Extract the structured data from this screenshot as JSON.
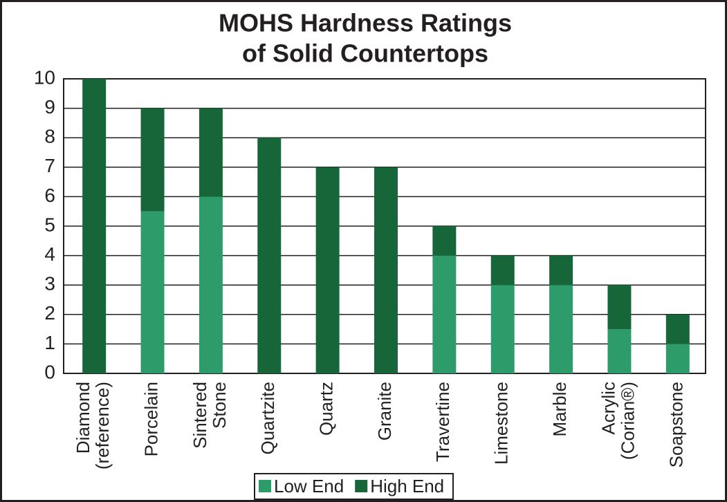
{
  "chart_data": {
    "type": "stacked_bar",
    "title": [
      "MOHS Hardness Ratings",
      "of Solid Countertops"
    ],
    "categories": [
      "Diamond (reference)",
      "Porcelain",
      "Sintered Stone",
      "Quartzite",
      "Quartz",
      "Granite",
      "Travertine",
      "Limestone",
      "Marble",
      "Acrylic (Corian®)",
      "Soapstone"
    ],
    "series": [
      {
        "name": "Low End",
        "color": "#2e9c6a",
        "values": [
          0,
          5.5,
          6,
          0,
          0,
          0,
          4,
          3,
          3,
          1.5,
          1
        ]
      },
      {
        "name": "High End",
        "color": "#17663a",
        "values": [
          10,
          3.5,
          3,
          8,
          7,
          7,
          1,
          1,
          1,
          1.5,
          1
        ]
      }
    ],
    "ylim": [
      0,
      10
    ],
    "yticks": [
      0,
      1,
      2,
      3,
      4,
      5,
      6,
      7,
      8,
      9,
      10
    ],
    "grid": true,
    "legend": "bottom"
  }
}
